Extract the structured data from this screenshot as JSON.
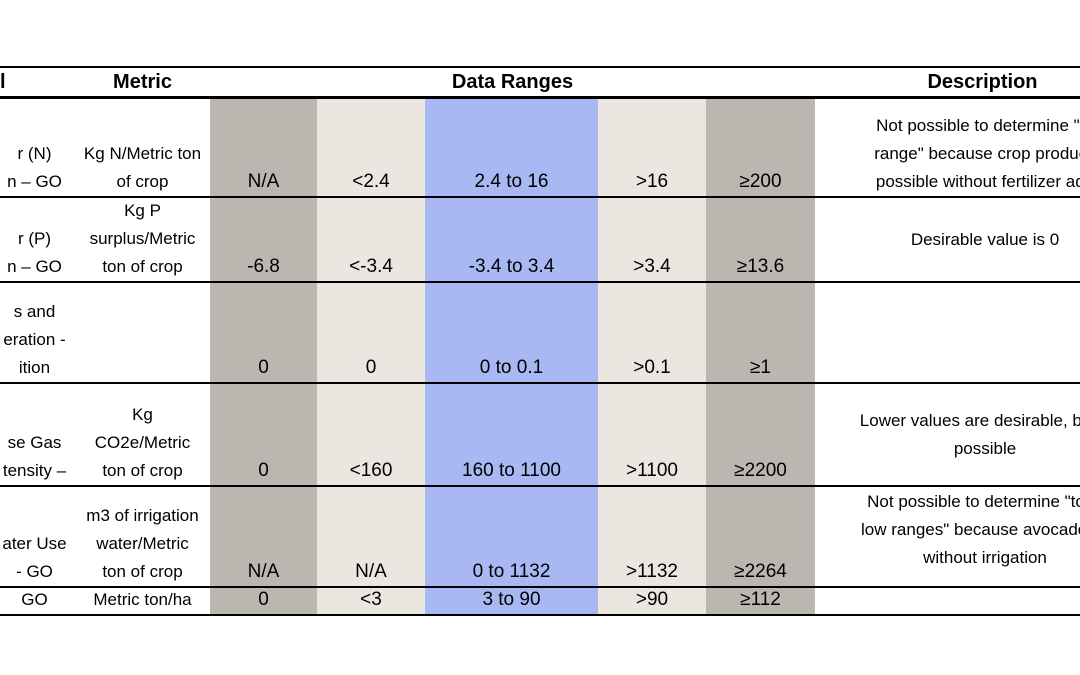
{
  "headers": {
    "indicator_fragment": "l",
    "metric": "Metric",
    "data_ranges": "Data Ranges",
    "description": "Description"
  },
  "colors": {
    "dark_gray": "#bab6b0",
    "light_beige": "#ece6e0",
    "blue": "#a8b8f2"
  },
  "rows": [
    {
      "indicator": [
        "r (N)",
        "n – GO"
      ],
      "metric": [
        "Kg N/Metric ton",
        "of crop"
      ],
      "values": [
        "N/A",
        "<2.4",
        "2.4 to 16",
        ">16",
        "≥200"
      ],
      "description": [
        "Not possible to determine \"to",
        "range\" because crop producti",
        "possible without fertilizer add"
      ]
    },
    {
      "indicator": [
        "r (P)",
        "n – GO"
      ],
      "metric": [
        "Kg P",
        "surplus/Metric",
        "ton of crop"
      ],
      "values": [
        "-6.8",
        "<-3.4",
        "-3.4 to 3.4",
        ">3.4",
        "≥13.6"
      ],
      "description": [
        "Desirable value is 0"
      ]
    },
    {
      "indicator": [
        "s and",
        "eration -",
        "ition"
      ],
      "metric": [],
      "values": [
        "0",
        "0",
        "0 to 0.1",
        ">0.1",
        "≥1"
      ],
      "description": []
    },
    {
      "indicator": [
        "se Gas",
        "tensity –"
      ],
      "metric": [
        "Kg",
        "CO2e/Metric",
        "ton of crop"
      ],
      "values": [
        "0",
        "<160",
        "160 to 1100",
        ">1100",
        "≥2200"
      ],
      "description": [
        "Lower values are desirable, but a",
        "possible"
      ]
    },
    {
      "indicator": [
        "ater Use",
        "- GO"
      ],
      "metric": [
        "m3 of irrigation",
        "water/Metric",
        "ton of crop"
      ],
      "values": [
        "N/A",
        "N/A",
        "0 to 1132",
        ">1132",
        "≥2264"
      ],
      "description": [
        "Not possible to determine \"too l",
        "low ranges\" because avocados c",
        "without irrigation"
      ]
    },
    {
      "indicator": [
        "GO"
      ],
      "metric": [
        "Metric ton/ha"
      ],
      "values": [
        "0",
        "<3",
        "3  to 90",
        ">90",
        "≥112"
      ],
      "description": []
    }
  ]
}
